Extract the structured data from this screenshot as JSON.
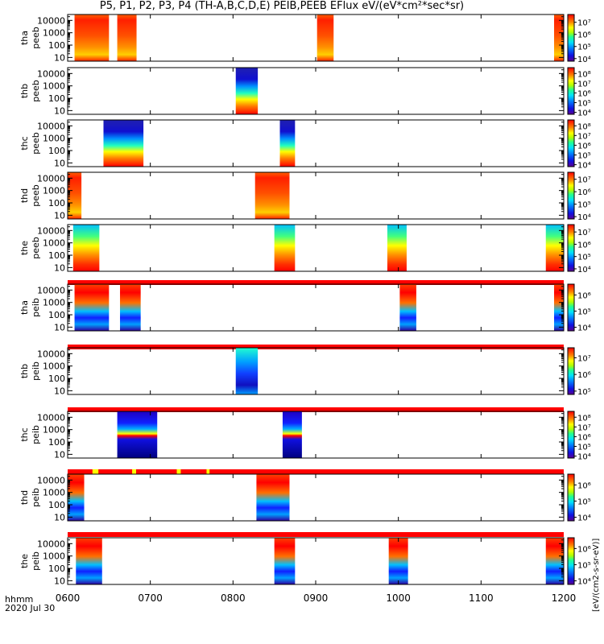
{
  "title": "P5, P1, P2, P3, P4 (TH-A,B,C,D,E) PEIB,PEEB EFlux eV/(eV*cm²*sec*sr)",
  "time_axis": {
    "label_line1": "hhmm",
    "label_line2": "2020 Jul 30",
    "ticks": [
      "0600",
      "0700",
      "0800",
      "0900",
      "1000",
      "1100",
      "1200"
    ],
    "range_minutes": [
      360,
      720
    ]
  },
  "colors": {
    "panel_border": "#000000",
    "status_bar": "#ff0000",
    "status_bar_gap": "#ffff00"
  },
  "chart_data": {
    "type": "heatmap",
    "y_scale": "log",
    "ylim": [
      5,
      30000
    ],
    "y_ticks": [
      "10",
      "100",
      "1000",
      "10000"
    ],
    "colorbar_label": "[eV/(cm2-s-sr-eV)]",
    "panels": [
      {
        "ylabel_1": "tha",
        "ylabel_2": "peeb",
        "cbar_ticks": [
          "10⁷",
          "10⁶",
          "10⁵",
          "10⁴"
        ],
        "cbar_range": [
          4,
          7.6
        ],
        "intervals": [
          [
            365,
            390
          ],
          [
            396,
            410
          ],
          [
            541,
            553
          ],
          [
            713,
            720
          ]
        ],
        "profile": "electron_hot"
      },
      {
        "ylabel_1": "thb",
        "ylabel_2": "peeb",
        "cbar_ticks": [
          "10⁸",
          "10⁷",
          "10⁶",
          "10⁵",
          "10⁴"
        ],
        "cbar_range": [
          3.8,
          8.6
        ],
        "intervals": [
          [
            482,
            498
          ]
        ],
        "profile": "electron_cold"
      },
      {
        "ylabel_1": "thc",
        "ylabel_2": "peeb",
        "cbar_ticks": [
          "10⁸",
          "10⁷",
          "10⁶",
          "10⁵",
          "10⁴"
        ],
        "cbar_range": [
          3.8,
          8.6
        ],
        "intervals": [
          [
            386,
            415
          ],
          [
            514,
            525
          ]
        ],
        "profile": "electron_cold"
      },
      {
        "ylabel_1": "thd",
        "ylabel_2": "peeb",
        "cbar_ticks": [
          "10⁷",
          "10⁶",
          "10⁵",
          "10⁴"
        ],
        "cbar_range": [
          3.8,
          7.8
        ],
        "intervals": [
          [
            360,
            370
          ],
          [
            496,
            521
          ]
        ],
        "profile": "electron_hot"
      },
      {
        "ylabel_1": "the",
        "ylabel_2": "peeb",
        "cbar_ticks": [
          "10⁷",
          "10⁶",
          "10⁵",
          "10⁴"
        ],
        "cbar_range": [
          3.8,
          7.6
        ],
        "intervals": [
          [
            364,
            383
          ],
          [
            510,
            525
          ],
          [
            592,
            606
          ],
          [
            707,
            720
          ]
        ],
        "profile": "electron_mid"
      },
      {
        "ylabel_1": "tha",
        "ylabel_2": "peib",
        "cbar_ticks": [
          "10⁶",
          "10⁵",
          "10⁴"
        ],
        "cbar_range": [
          3.8,
          6.4
        ],
        "intervals": [
          [
            365,
            390
          ],
          [
            398,
            413
          ],
          [
            601,
            613
          ],
          [
            713,
            720
          ]
        ],
        "profile": "ion"
      },
      {
        "ylabel_1": "thb",
        "ylabel_2": "peib",
        "cbar_ticks": [
          "10⁷",
          "10⁶",
          "10⁵"
        ],
        "cbar_range": [
          4.6,
          7.4
        ],
        "intervals": [
          [
            482,
            498
          ]
        ],
        "profile": "ion_cold"
      },
      {
        "ylabel_1": "thc",
        "ylabel_2": "peib",
        "cbar_ticks": [
          "10⁸",
          "10⁷",
          "10⁶",
          "10⁵",
          "10⁴"
        ],
        "cbar_range": [
          3.6,
          8.4
        ],
        "intervals": [
          [
            396,
            425
          ],
          [
            516,
            530
          ]
        ],
        "profile": "ion_band"
      },
      {
        "ylabel_1": "thd",
        "ylabel_2": "peib",
        "cbar_ticks": [
          "10⁶",
          "10⁵",
          "10⁴"
        ],
        "cbar_range": [
          3.8,
          6.4
        ],
        "intervals": [
          [
            360,
            372
          ],
          [
            497,
            521
          ]
        ],
        "profile": "ion"
      },
      {
        "ylabel_1": "the",
        "ylabel_2": "peib",
        "cbar_ticks": [
          "10⁶",
          "10⁵",
          "10⁴"
        ],
        "cbar_range": [
          3.8,
          6.4
        ],
        "intervals": [
          [
            366,
            385
          ],
          [
            510,
            525
          ],
          [
            593,
            607
          ],
          [
            707,
            720
          ]
        ],
        "profile": "ion"
      }
    ]
  }
}
